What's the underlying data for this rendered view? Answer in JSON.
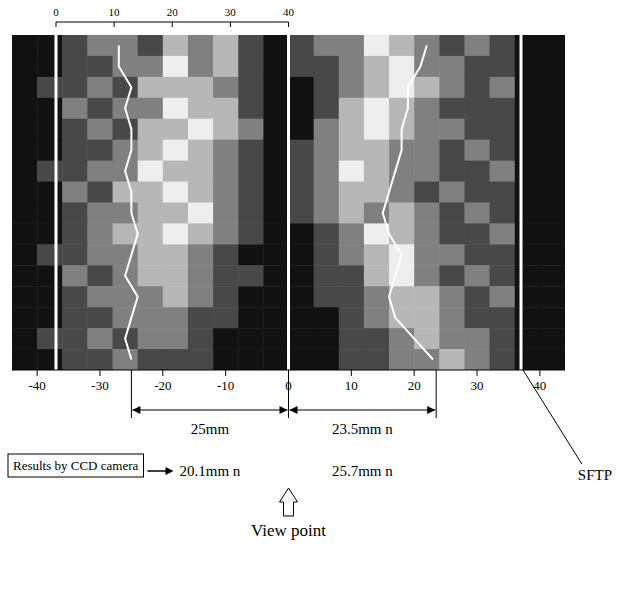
{
  "chart_data": {
    "type": "heatmap",
    "xlim": [
      -44,
      44
    ],
    "xticks": [
      -40,
      -30,
      -20,
      -10,
      0,
      10,
      20,
      30,
      40
    ],
    "top_axis": {
      "lim": [
        0,
        40
      ],
      "ticks": [
        0,
        10,
        20,
        30,
        40
      ],
      "span": [
        -37,
        0
      ]
    },
    "color_range": [
      0,
      4
    ],
    "cells": [
      [
        0,
        0,
        1,
        2,
        2,
        1,
        3,
        2,
        3,
        1,
        0,
        1,
        2,
        2,
        4,
        3,
        2,
        1,
        2,
        1,
        0,
        0
      ],
      [
        0,
        0,
        1,
        1,
        2,
        2,
        4,
        2,
        3,
        1,
        0,
        1,
        1,
        2,
        3,
        4,
        2,
        2,
        1,
        1,
        0,
        0
      ],
      [
        0,
        1,
        1,
        2,
        1,
        3,
        3,
        3,
        2,
        1,
        0,
        0,
        1,
        2,
        3,
        4,
        3,
        2,
        1,
        2,
        0,
        0
      ],
      [
        0,
        0,
        2,
        1,
        2,
        2,
        4,
        3,
        3,
        1,
        0,
        0,
        1,
        3,
        4,
        3,
        2,
        1,
        1,
        1,
        0,
        0
      ],
      [
        0,
        0,
        1,
        2,
        1,
        3,
        3,
        4,
        3,
        2,
        0,
        0,
        2,
        3,
        4,
        3,
        2,
        2,
        1,
        1,
        0,
        0
      ],
      [
        0,
        0,
        1,
        1,
        2,
        3,
        4,
        3,
        2,
        1,
        0,
        1,
        2,
        3,
        3,
        2,
        2,
        1,
        2,
        1,
        0,
        0
      ],
      [
        0,
        1,
        1,
        2,
        2,
        4,
        3,
        3,
        2,
        1,
        0,
        1,
        2,
        4,
        3,
        2,
        2,
        1,
        1,
        2,
        0,
        0
      ],
      [
        0,
        0,
        2,
        1,
        3,
        3,
        4,
        3,
        2,
        1,
        0,
        1,
        2,
        3,
        3,
        2,
        1,
        2,
        1,
        1,
        0,
        0
      ],
      [
        0,
        0,
        1,
        2,
        2,
        3,
        3,
        4,
        2,
        1,
        0,
        1,
        2,
        3,
        2,
        3,
        2,
        1,
        2,
        1,
        0,
        0
      ],
      [
        0,
        0,
        1,
        2,
        3,
        3,
        4,
        3,
        2,
        1,
        0,
        0,
        1,
        2,
        4,
        3,
        2,
        1,
        1,
        2,
        0,
        0
      ],
      [
        0,
        1,
        1,
        2,
        2,
        3,
        3,
        2,
        1,
        0,
        0,
        0,
        1,
        2,
        3,
        4,
        2,
        2,
        1,
        1,
        0,
        0
      ],
      [
        0,
        0,
        2,
        1,
        2,
        3,
        3,
        2,
        1,
        1,
        0,
        0,
        1,
        1,
        3,
        4,
        2,
        1,
        2,
        1,
        0,
        0
      ],
      [
        0,
        0,
        1,
        2,
        2,
        2,
        3,
        2,
        1,
        0,
        0,
        0,
        1,
        1,
        2,
        3,
        3,
        2,
        1,
        2,
        0,
        0
      ],
      [
        0,
        0,
        1,
        1,
        2,
        2,
        2,
        1,
        1,
        0,
        0,
        0,
        0,
        1,
        2,
        3,
        3,
        2,
        1,
        1,
        0,
        0
      ],
      [
        0,
        1,
        1,
        2,
        1,
        2,
        2,
        1,
        0,
        0,
        0,
        0,
        0,
        1,
        1,
        2,
        3,
        2,
        2,
        1,
        0,
        0
      ],
      [
        0,
        0,
        1,
        1,
        2,
        1,
        1,
        1,
        0,
        0,
        0,
        0,
        0,
        1,
        1,
        2,
        2,
        3,
        2,
        1,
        0,
        0
      ]
    ],
    "reference_lines": [
      -37,
      0,
      37
    ],
    "boundaries": [
      {
        "x": [
          -27,
          -27,
          -25,
          -26,
          -25,
          -25,
          -26,
          -25,
          -25,
          -24,
          -25,
          -26,
          -24,
          -25,
          -26,
          -25
        ]
      },
      {
        "x": [
          22,
          21,
          19,
          19,
          18,
          18,
          17,
          16,
          15,
          16,
          18,
          17,
          16,
          17,
          20,
          23
        ]
      }
    ],
    "dimensions": [
      {
        "from": -25,
        "to": 0,
        "label": "25mm"
      },
      {
        "from": 0,
        "to": 23.5,
        "label": "23.5mm n"
      }
    ],
    "annotations": {
      "ccd_box": "Results by CCD camera",
      "ccd_left": "20.1mm n",
      "ccd_right": "25.7mm n",
      "view_point": "View point",
      "sftp": "SFTP"
    }
  }
}
